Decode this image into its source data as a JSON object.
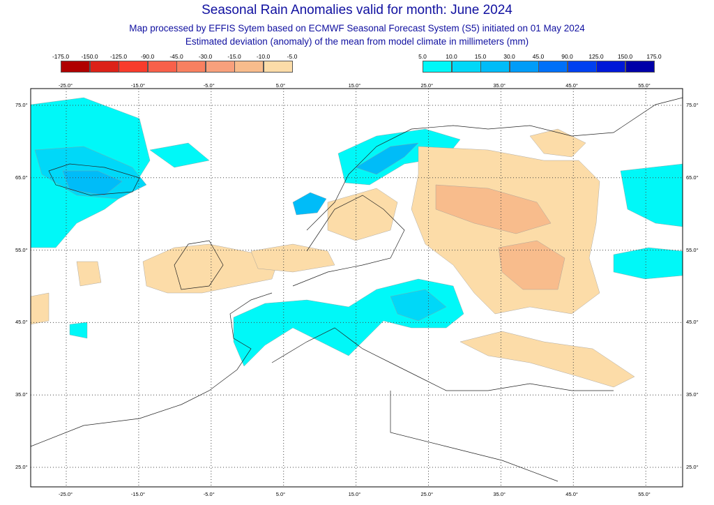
{
  "title": "Seasonal Rain Anomalies valid for month: June 2024",
  "subtitle1": "Map processed by EFFIS Sytem based on ECMWF Seasonal Forecast System (S5) initiated on 01 May 2024",
  "subtitle2": "Estimated deviation (anomaly) of the mean from model climate in millimeters (mm)",
  "legend_dry": {
    "labels": [
      "-175.0",
      "-150.0",
      "-125.0",
      "-90.0",
      "-45.0",
      "-30.0",
      "-15.0",
      "-10.0",
      "-5.0"
    ],
    "colors": [
      "#b00000",
      "#dc2218",
      "#f83c2c",
      "#f8604a",
      "#f88060",
      "#f8a07c",
      "#f8bc8c",
      "#fcdca8"
    ]
  },
  "legend_wet": {
    "labels": [
      "5.0",
      "10.0",
      "15.0",
      "30.0",
      "45.0",
      "90.0",
      "125.0",
      "150.0",
      "175.0"
    ],
    "colors": [
      "#00f8f8",
      "#00d8f8",
      "#00bcf8",
      "#009cf8",
      "#0070f8",
      "#0040f0",
      "#0018d8",
      "#0000a8"
    ]
  },
  "axes": {
    "lon_labels": [
      "-25.0°",
      "-15.0°",
      "-5.0°",
      "5.0°",
      "15.0°",
      "25.0°",
      "35.0°",
      "45.0°",
      "55.0°"
    ],
    "lat_labels": [
      "75.0°",
      "65.0°",
      "55.0°",
      "45.0°",
      "35.0°",
      "25.0°"
    ]
  }
}
